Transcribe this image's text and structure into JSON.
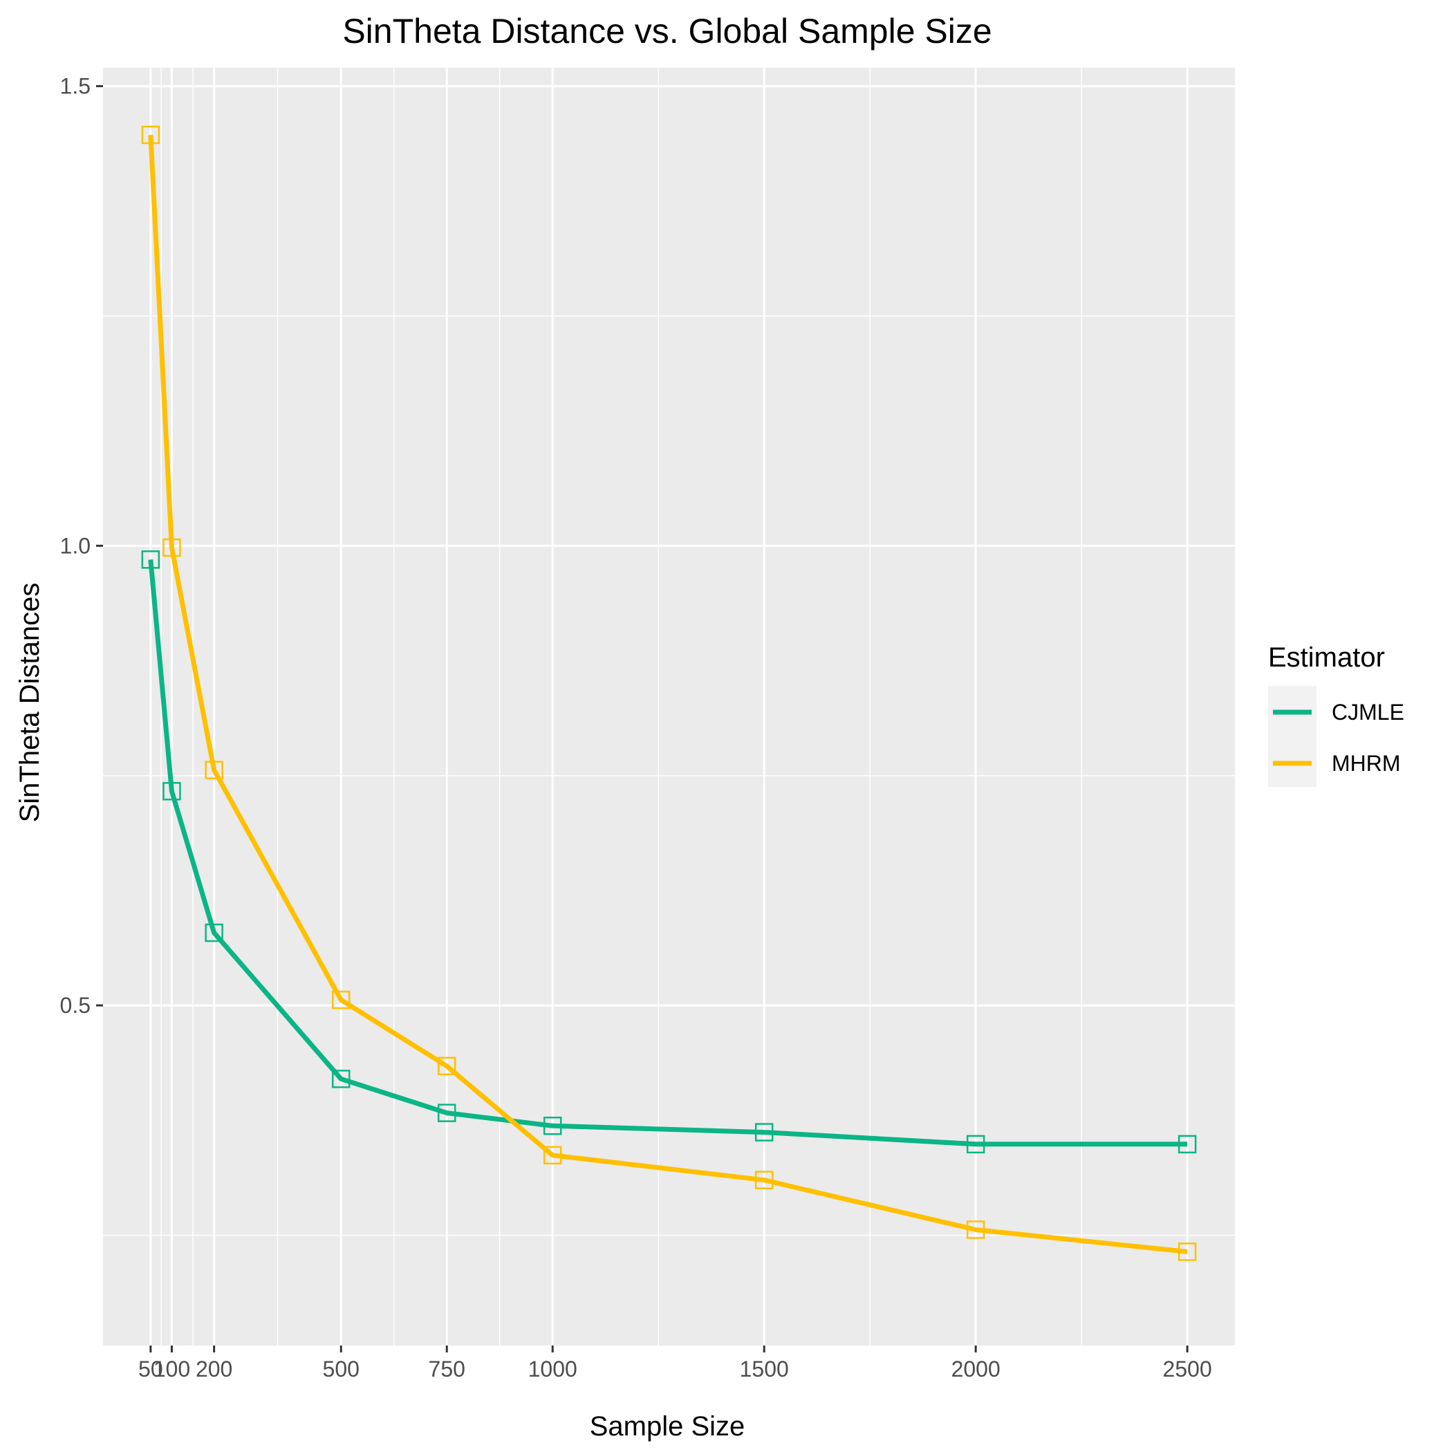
{
  "chart_data": {
    "type": "line",
    "title": "SinTheta Distance vs. Global Sample Size",
    "xlabel": "Sample Size",
    "ylabel": "SinTheta Distances",
    "x": [
      50,
      100,
      200,
      500,
      750,
      1000,
      1500,
      2000,
      2500
    ],
    "x_ticks": [
      50,
      100,
      200,
      500,
      750,
      1000,
      1500,
      2000,
      2500
    ],
    "x_tick_labels": [
      "50",
      "100",
      "200",
      "500",
      "750",
      "1000",
      "1500",
      "2000",
      "2500"
    ],
    "y_ticks": [
      0.5,
      1.0,
      1.5
    ],
    "y_tick_labels": [
      "0.5",
      "1.0",
      "1.5"
    ],
    "xlim": [
      -62.5,
      2612.5
    ],
    "ylim": [
      0.13,
      1.52
    ],
    "grid": true,
    "legend_placement": "right",
    "legend_title": "Estimator",
    "series": [
      {
        "name": "CJMLE",
        "color": "#0BB585",
        "values": [
          0.985,
          0.733,
          0.579,
          0.42,
          0.383,
          0.369,
          0.362,
          0.349,
          0.349
        ]
      },
      {
        "name": "MHRM",
        "color": "#FFC000",
        "values": [
          1.447,
          0.998,
          0.756,
          0.506,
          0.434,
          0.337,
          0.31,
          0.256,
          0.232
        ]
      }
    ]
  }
}
